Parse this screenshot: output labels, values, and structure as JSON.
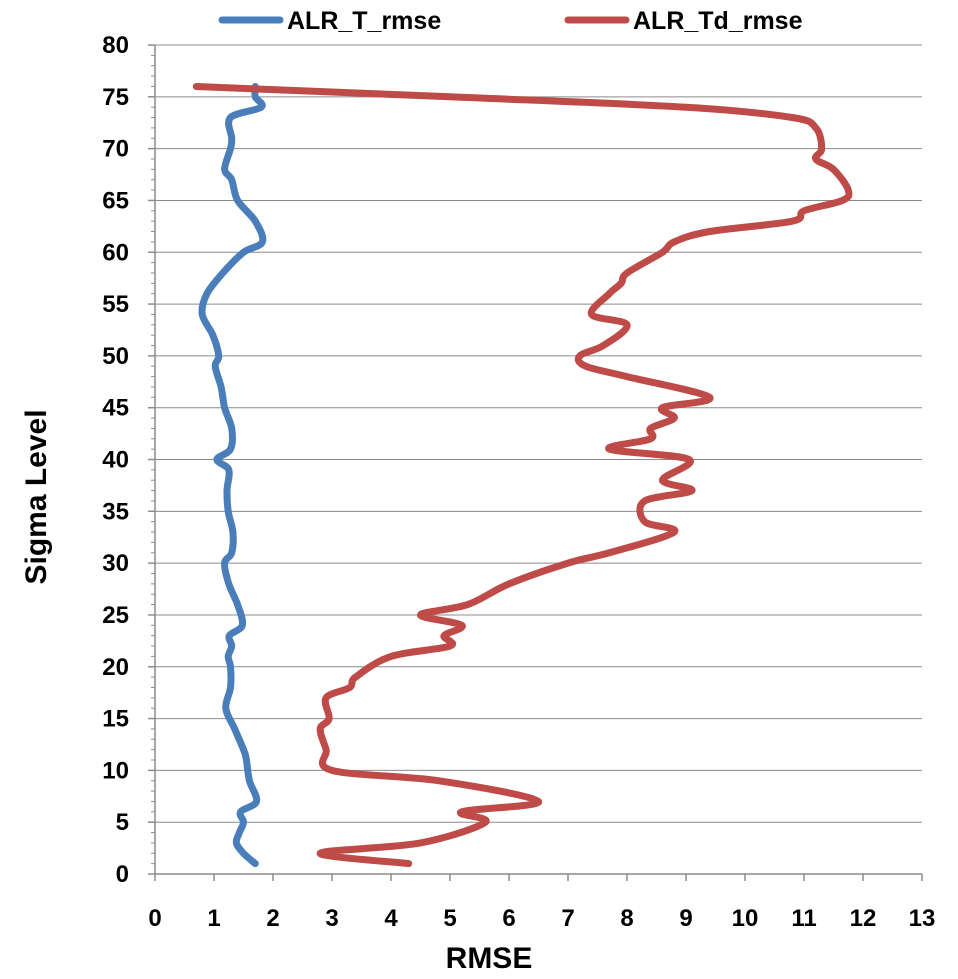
{
  "chart_data": {
    "type": "line",
    "title": "",
    "xlabel": "RMSE",
    "ylabel": "Sigma Level",
    "xlim": [
      0,
      13
    ],
    "ylim": [
      0,
      80
    ],
    "x_ticks": [
      0,
      1,
      2,
      3,
      4,
      5,
      6,
      7,
      8,
      9,
      10,
      11,
      12,
      13
    ],
    "y_ticks": [
      0,
      5,
      10,
      15,
      20,
      25,
      30,
      35,
      40,
      45,
      50,
      55,
      60,
      65,
      70,
      75,
      80
    ],
    "grid": "horizontal",
    "legend_position": "top",
    "series": [
      {
        "name": "ALR_T_rmse",
        "color": "#4a7ebb",
        "points": [
          [
            1.7,
            1
          ],
          [
            1.5,
            2
          ],
          [
            1.38,
            3
          ],
          [
            1.43,
            4
          ],
          [
            1.5,
            5
          ],
          [
            1.45,
            6
          ],
          [
            1.72,
            7
          ],
          [
            1.6,
            9
          ],
          [
            1.55,
            11
          ],
          [
            1.5,
            12
          ],
          [
            1.35,
            14
          ],
          [
            1.2,
            16
          ],
          [
            1.28,
            18
          ],
          [
            1.28,
            20
          ],
          [
            1.24,
            21
          ],
          [
            1.3,
            22
          ],
          [
            1.26,
            23
          ],
          [
            1.48,
            24
          ],
          [
            1.4,
            26
          ],
          [
            1.25,
            28
          ],
          [
            1.18,
            30
          ],
          [
            1.3,
            31
          ],
          [
            1.32,
            33
          ],
          [
            1.24,
            35
          ],
          [
            1.22,
            37
          ],
          [
            1.25,
            39
          ],
          [
            1.05,
            40
          ],
          [
            1.28,
            41
          ],
          [
            1.3,
            43
          ],
          [
            1.18,
            45
          ],
          [
            1.12,
            47
          ],
          [
            1.02,
            49
          ],
          [
            1.08,
            50
          ],
          [
            0.98,
            52
          ],
          [
            0.8,
            54
          ],
          [
            0.88,
            56
          ],
          [
            1.15,
            58
          ],
          [
            1.5,
            60
          ],
          [
            1.82,
            61
          ],
          [
            1.7,
            63
          ],
          [
            1.4,
            65
          ],
          [
            1.3,
            67
          ],
          [
            1.18,
            68
          ],
          [
            1.28,
            70
          ],
          [
            1.3,
            71
          ],
          [
            1.28,
            73
          ],
          [
            1.8,
            74
          ],
          [
            1.7,
            75
          ],
          [
            1.7,
            76
          ]
        ]
      },
      {
        "name": "ALR_Td_rmse",
        "color": "#be4b48",
        "points": [
          [
            4.3,
            1
          ],
          [
            2.8,
            2
          ],
          [
            4.5,
            3
          ],
          [
            5.6,
            5
          ],
          [
            5.2,
            6
          ],
          [
            6.5,
            7
          ],
          [
            4.8,
            9
          ],
          [
            3.0,
            10
          ],
          [
            2.9,
            12
          ],
          [
            2.8,
            14
          ],
          [
            2.95,
            15
          ],
          [
            2.9,
            17
          ],
          [
            3.3,
            18
          ],
          [
            3.4,
            19
          ],
          [
            4.0,
            21
          ],
          [
            5.0,
            22
          ],
          [
            4.9,
            23
          ],
          [
            5.2,
            24
          ],
          [
            4.5,
            25
          ],
          [
            5.3,
            26
          ],
          [
            6.0,
            28
          ],
          [
            7.0,
            30
          ],
          [
            7.7,
            31
          ],
          [
            8.8,
            33
          ],
          [
            8.3,
            34
          ],
          [
            8.3,
            36
          ],
          [
            9.1,
            37
          ],
          [
            8.6,
            38
          ],
          [
            9.05,
            40
          ],
          [
            7.7,
            41
          ],
          [
            8.4,
            42
          ],
          [
            8.4,
            43
          ],
          [
            8.8,
            44
          ],
          [
            8.6,
            45
          ],
          [
            9.4,
            46
          ],
          [
            8.0,
            48
          ],
          [
            7.3,
            49
          ],
          [
            7.2,
            50
          ],
          [
            7.6,
            51
          ],
          [
            8.0,
            53
          ],
          [
            7.4,
            54
          ],
          [
            7.7,
            56
          ],
          [
            7.9,
            57
          ],
          [
            8.0,
            58
          ],
          [
            8.6,
            60
          ],
          [
            8.8,
            61
          ],
          [
            9.4,
            62
          ],
          [
            10.8,
            63
          ],
          [
            11.0,
            64
          ],
          [
            11.65,
            65
          ],
          [
            11.75,
            66
          ],
          [
            11.5,
            68
          ],
          [
            11.2,
            69
          ],
          [
            11.3,
            70
          ],
          [
            11.2,
            72
          ],
          [
            10.8,
            73
          ],
          [
            9.0,
            74
          ],
          [
            5.0,
            75
          ],
          [
            0.7,
            76
          ]
        ]
      }
    ]
  }
}
